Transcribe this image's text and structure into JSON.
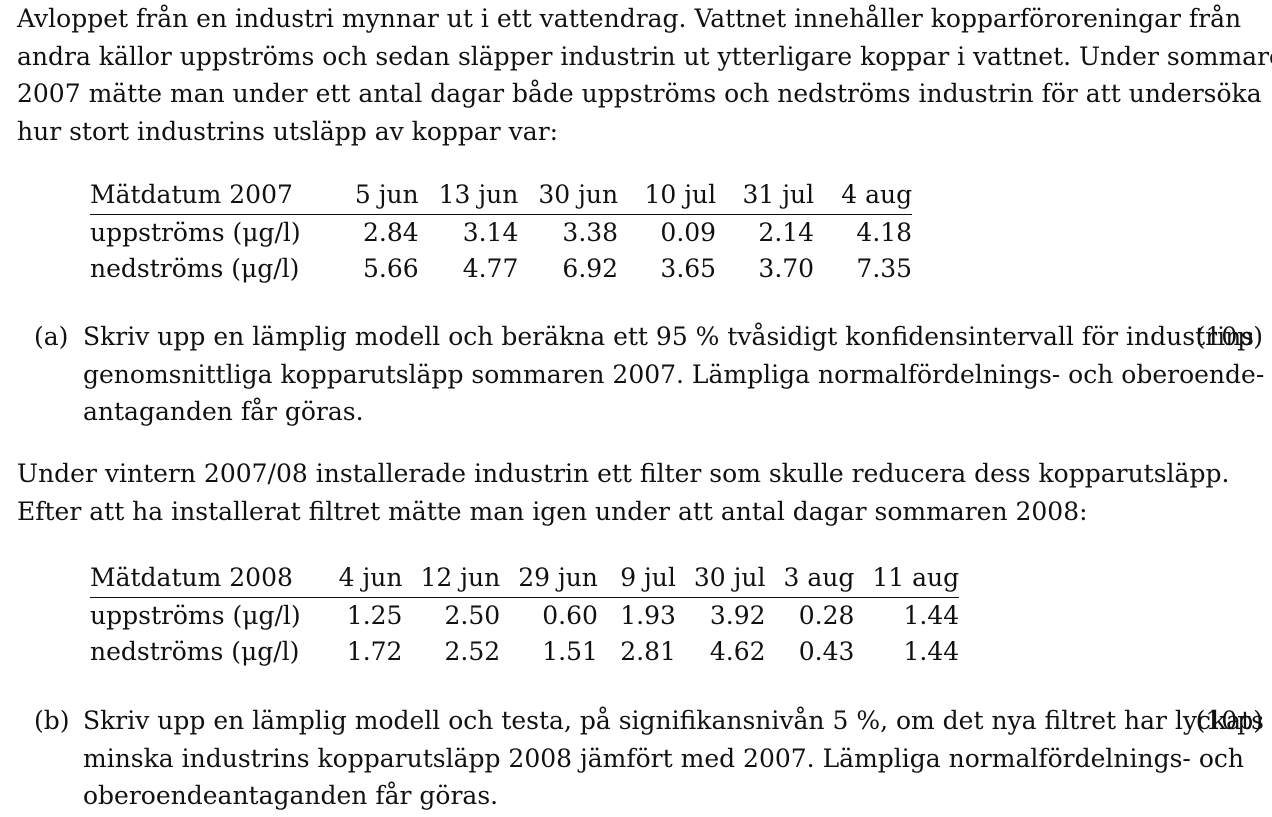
{
  "intro": {
    "lines": [
      "Avloppet från en industri mynnar ut i ett vattendrag. Vattnet innehåller kopparföroreningar från",
      "andra källor uppströms och sedan släpper industrin ut ytterligare koppar i vattnet. Under sommaren",
      "2007 mätte man under ett antal dagar både uppströms och nedströms industrin för att undersöka",
      "hur stort industrins utsläpp av koppar var:"
    ]
  },
  "table2007": {
    "header": "Mätdatum 2007",
    "dates": [
      "5 jun",
      "13 jun",
      "30 jun",
      "10 jul",
      "31 jul",
      "4 aug"
    ],
    "rows": [
      {
        "label": "uppströms (μg/l)",
        "values": [
          "2.84",
          "3.14",
          "3.38",
          "0.09",
          "2.14",
          "4.18"
        ]
      },
      {
        "label": "nedströms (μg/l)",
        "values": [
          "5.66",
          "4.77",
          "6.92",
          "3.65",
          "3.70",
          "7.35"
        ]
      }
    ]
  },
  "taskA": {
    "label": "(a)",
    "points": "(10p)",
    "lines": [
      "Skriv upp en lämplig modell och beräkna ett 95 % tvåsidigt konfidensintervall för industrins",
      "genomsnittliga kopparutsläpp sommaren 2007. Lämpliga normalfördelnings- och oberoende-",
      "antaganden får göras."
    ]
  },
  "middle": {
    "lines": [
      "Under vintern 2007/08 installerade industrin ett filter som skulle reducera dess kopparutsläpp.",
      "Efter att ha installerat filtret mätte man igen under att antal dagar sommaren 2008:"
    ]
  },
  "table2008": {
    "header": "Mätdatum 2008",
    "dates": [
      "4 jun",
      "12 jun",
      "29 jun",
      "9 jul",
      "30 jul",
      "3 aug",
      "11 aug"
    ],
    "rows": [
      {
        "label": "uppströms (μg/l)",
        "values": [
          "1.25",
          "2.50",
          "0.60",
          "1.93",
          "3.92",
          "0.28",
          "1.44"
        ]
      },
      {
        "label": "nedströms (μg/l)",
        "values": [
          "1.72",
          "2.52",
          "1.51",
          "2.81",
          "4.62",
          "0.43",
          "1.44"
        ]
      }
    ]
  },
  "taskB": {
    "label": "(b)",
    "points": "(10p)",
    "lines": [
      "Skriv upp en lämplig modell och testa, på signifikansnivån 5 %, om det nya filtret har lyckats",
      "minska industrins kopparutsläpp 2008 jämfört med 2007. Lämpliga normalfördelnings- och",
      "oberoendeantaganden får göras."
    ]
  }
}
